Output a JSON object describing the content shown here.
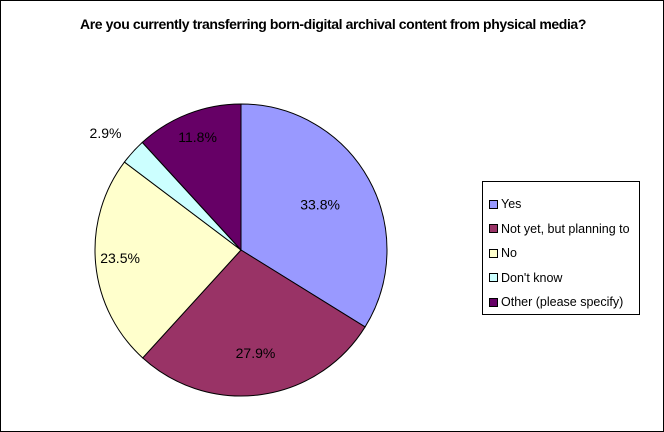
{
  "chart_data": {
    "type": "pie",
    "title": "Are you currently transferring born-digital archival content from physical media?",
    "categories": [
      "Yes",
      "Not yet, but planning to",
      "No",
      "Don't know",
      "Other (please specify)"
    ],
    "values": [
      33.8,
      27.9,
      23.5,
      2.9,
      11.8
    ],
    "value_labels": [
      "33.8%",
      "27.9%",
      "23.5%",
      "2.9%",
      "11.8%"
    ],
    "colors": [
      "#9999ff",
      "#993366",
      "#ffffcc",
      "#ccffff",
      "#660066"
    ],
    "label_colors": [
      "#000000",
      "#000000",
      "#000000",
      "#000000",
      "#000000"
    ],
    "legend_placement": "right"
  }
}
